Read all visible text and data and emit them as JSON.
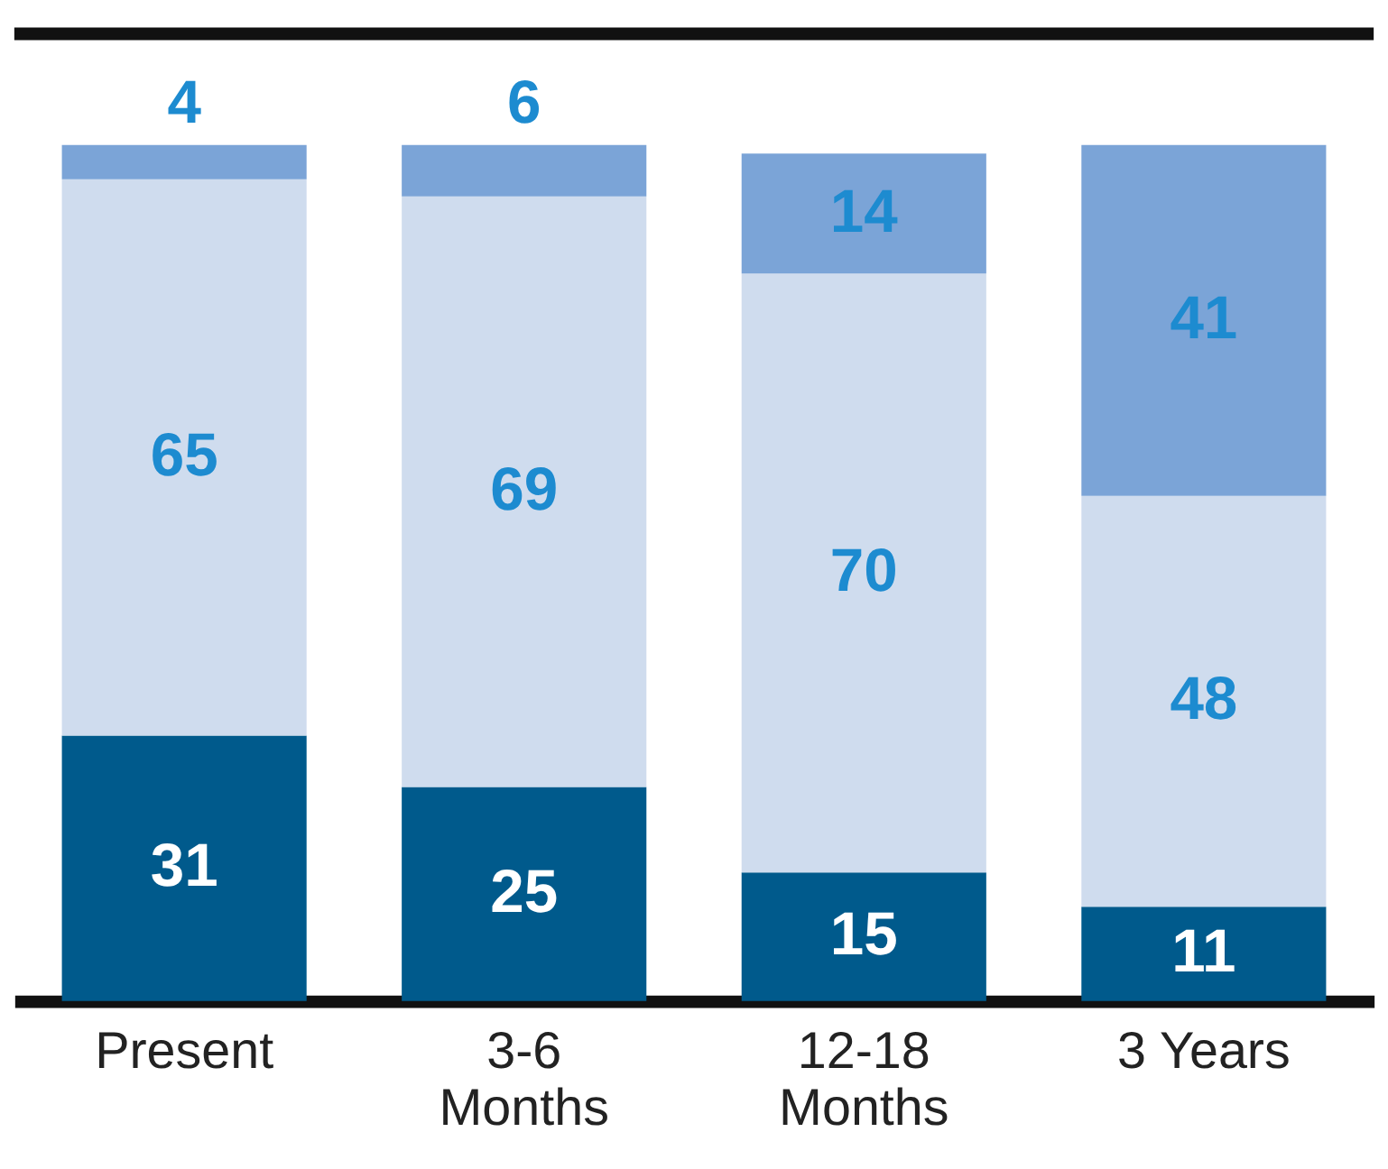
{
  "chart_data": {
    "type": "bar",
    "stacked": true,
    "data_labels": true,
    "categories": [
      "Present",
      "3-6\nMonths",
      "12-18\nMonths",
      "3 Years"
    ],
    "series": [
      {
        "color": "#005a8c",
        "values": [
          31,
          25,
          15,
          11
        ]
      },
      {
        "color": "#cfdcee",
        "values": [
          65,
          69,
          70,
          48
        ]
      },
      {
        "color": "#7ba4d7",
        "values": [
          4,
          6,
          14,
          41
        ]
      }
    ],
    "ylim": [
      0,
      113
    ]
  }
}
